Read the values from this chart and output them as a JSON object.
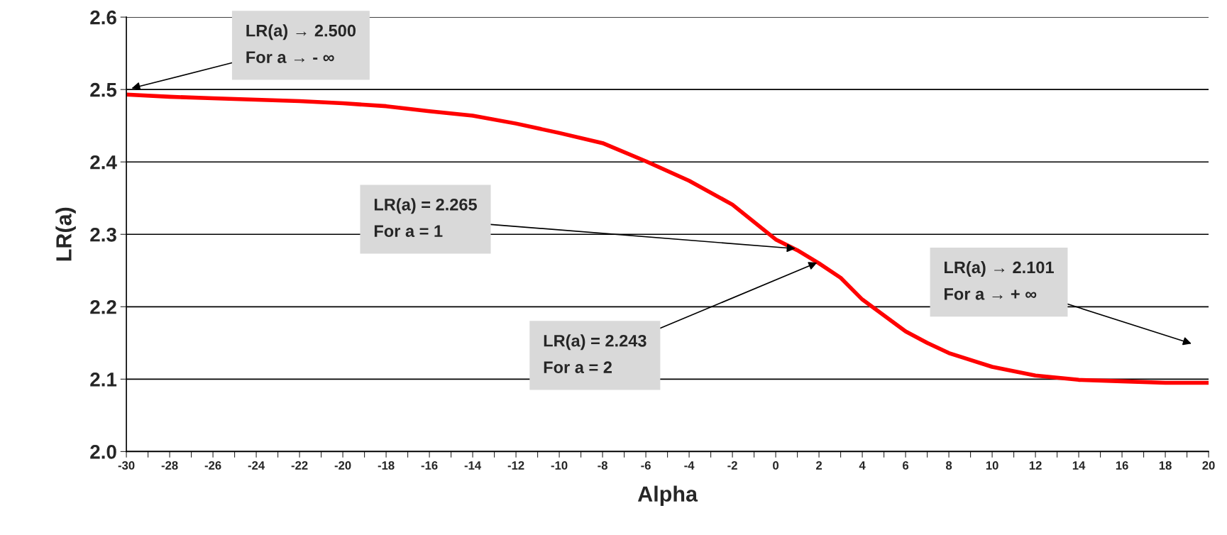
{
  "chart_data": {
    "type": "line",
    "xlabel": "Alpha",
    "ylabel": "LR(a)",
    "x": [
      -30,
      -28,
      -26,
      -24,
      -22,
      -20,
      -18,
      -16,
      -14,
      -12,
      -10,
      -8,
      -6,
      -4,
      -2,
      0,
      1,
      2,
      3,
      4,
      5,
      6,
      7,
      8,
      10,
      12,
      14,
      16,
      18,
      20
    ],
    "series": [
      {
        "color": "#ff0000",
        "values": [
          2.493,
          2.49,
          2.488,
          2.486,
          2.484,
          2.481,
          2.477,
          2.47,
          2.464,
          2.453,
          2.44,
          2.426,
          2.401,
          2.374,
          2.341,
          2.293,
          2.278,
          2.26,
          2.24,
          2.21,
          2.188,
          2.166,
          2.15,
          2.136,
          2.117,
          2.105,
          2.099,
          2.097,
          2.095,
          2.095
        ]
      }
    ],
    "xlim": [
      -30,
      20
    ],
    "xticks": [
      -30,
      {
        "value": -29,
        "label": null
      },
      -28,
      {
        "value": -27,
        "label": null
      },
      -26,
      {
        "value": -25,
        "label": null
      },
      -24,
      {
        "value": -23,
        "label": null
      },
      -22,
      {
        "value": -21,
        "label": null
      },
      -20,
      {
        "value": -19,
        "label": null
      },
      -18,
      {
        "value": -17,
        "label": null
      },
      -16,
      {
        "value": -15,
        "label": null
      },
      -14,
      {
        "value": -13,
        "label": null
      },
      -12,
      {
        "value": -11,
        "label": null
      },
      -10,
      {
        "value": -9,
        "label": null
      },
      -8,
      {
        "value": -7,
        "label": null
      },
      -6,
      {
        "value": -5,
        "label": null
      },
      -4,
      {
        "value": -3,
        "label": null
      },
      -2,
      {
        "value": -1,
        "label": null
      },
      0,
      {
        "value": 1,
        "label": null
      },
      2,
      {
        "value": 3,
        "label": null
      },
      4,
      {
        "value": 5,
        "label": null
      },
      6,
      {
        "value": 7,
        "label": null
      },
      8,
      {
        "value": 9,
        "label": null
      },
      10,
      {
        "value": 11,
        "label": null
      },
      12,
      {
        "value": 13,
        "label": null
      },
      14,
      {
        "value": 15,
        "label": null
      },
      16,
      {
        "value": 17,
        "label": null
      },
      18,
      {
        "value": 19,
        "label": null
      },
      20
    ],
    "ylim": [
      2.0,
      2.6
    ],
    "yticks": [
      {
        "value": 2.0,
        "label": "2.0"
      },
      {
        "value": 2.1,
        "label": "2.1"
      },
      {
        "value": 2.2,
        "label": "2.2"
      },
      {
        "value": 2.3,
        "label": "2.3"
      },
      {
        "value": 2.4,
        "label": "2.4"
      },
      {
        "value": 2.5,
        "label": "2.5"
      },
      {
        "value": 2.6,
        "label": "2.6"
      }
    ],
    "grid": "y",
    "legend": false,
    "marker": "none",
    "line_style": "solid",
    "annotations": [
      "LR(a) → 2.500\nFor a → - ∞",
      {
        "text": "LR(a) = 2.265\nFor a = 1",
        "x": 1,
        "y": 2.28
      },
      {
        "text": "LR(a) = 2.243\nFor a = 2",
        "x": 2,
        "y": 2.262
      },
      "LR(a) → 2.101\nFor a → + ∞"
    ]
  }
}
